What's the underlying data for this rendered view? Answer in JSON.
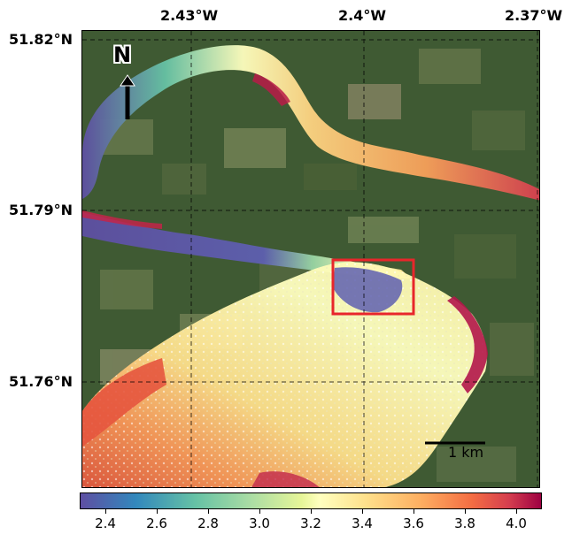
{
  "top_labels": [
    "2.43°W",
    "2.4°W",
    "2.37°W"
  ],
  "left_labels": [
    "51.82°N",
    "51.79°N",
    "51.76°N"
  ],
  "north_label": "N",
  "scale_label": "1 km",
  "colorbar": {
    "ticks": [
      "2.4",
      "2.6",
      "2.8",
      "3.0",
      "3.2",
      "3.4",
      "3.6",
      "3.8",
      "4.0"
    ],
    "range": [
      2.3,
      4.1
    ],
    "colormap": "Spectral_r"
  },
  "colors": {
    "land": "#3f5a33",
    "field_light": "#6f7e52",
    "mudbank": "#6e6553",
    "low": "#5e4fa2",
    "mid": "#ffffbf",
    "high": "#9e0142",
    "highlight_box": "#e8262b"
  }
}
